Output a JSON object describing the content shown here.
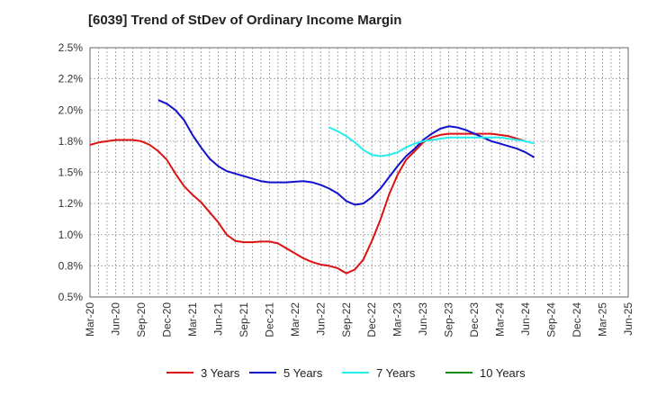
{
  "chart_data": {
    "type": "line",
    "title": "[6039]  Trend of StDev of Ordinary Income Margin",
    "xlabel": "",
    "ylabel": "",
    "ylim": [
      0.5,
      2.5
    ],
    "yticks": [
      0.5,
      0.75,
      1.0,
      1.25,
      1.5,
      1.75,
      2.0,
      2.25,
      2.5
    ],
    "ytick_labels": [
      "0.5%",
      "0.8%",
      "1.0%",
      "1.2%",
      "1.5%",
      "1.8%",
      "2.0%",
      "2.2%",
      "2.5%"
    ],
    "x_tick_labels": [
      "Mar-20",
      "Jun-20",
      "Sep-20",
      "Dec-20",
      "Mar-21",
      "Jun-21",
      "Sep-21",
      "Dec-21",
      "Mar-22",
      "Jun-22",
      "Sep-22",
      "Dec-22",
      "Mar-23",
      "Jun-23",
      "Sep-23",
      "Dec-23",
      "Mar-24",
      "Jun-24",
      "Sep-24",
      "Dec-24",
      "Mar-25",
      "Jun-25"
    ],
    "grid": true,
    "legend_position": "bottom",
    "series": [
      {
        "name": "3 Years",
        "color": "#dd1111",
        "start_index": 0,
        "values": [
          1.72,
          1.74,
          1.75,
          1.76,
          1.76,
          1.76,
          1.75,
          1.72,
          1.67,
          1.6,
          1.49,
          1.39,
          1.32,
          1.26,
          1.18,
          1.1,
          1.0,
          0.95,
          0.94,
          0.94,
          0.945,
          0.945,
          0.93,
          0.89,
          0.85,
          0.81,
          0.78,
          0.76,
          0.75,
          0.73,
          0.69,
          0.72,
          0.8,
          0.95,
          1.12,
          1.32,
          1.48,
          1.6,
          1.67,
          1.74,
          1.78,
          1.8,
          1.81,
          1.81,
          1.81,
          1.81,
          1.81,
          1.81,
          1.8,
          1.79,
          1.77,
          1.75
        ]
      },
      {
        "name": "5 Years",
        "color": "#1111cc",
        "start_index": 8,
        "values": [
          2.08,
          2.05,
          2.0,
          1.92,
          1.8,
          1.7,
          1.61,
          1.55,
          1.51,
          1.49,
          1.47,
          1.45,
          1.43,
          1.42,
          1.42,
          1.42,
          1.425,
          1.43,
          1.42,
          1.4,
          1.37,
          1.33,
          1.27,
          1.24,
          1.25,
          1.3,
          1.37,
          1.46,
          1.55,
          1.63,
          1.69,
          1.76,
          1.81,
          1.85,
          1.87,
          1.86,
          1.84,
          1.81,
          1.78,
          1.75,
          1.73,
          1.71,
          1.69,
          1.66,
          1.62
        ]
      },
      {
        "name": "7 Years",
        "color": "#22eeee",
        "start_index": 28,
        "values": [
          1.86,
          1.83,
          1.79,
          1.74,
          1.68,
          1.64,
          1.63,
          1.64,
          1.66,
          1.7,
          1.73,
          1.75,
          1.76,
          1.77,
          1.78,
          1.78,
          1.78,
          1.78,
          1.78,
          1.78,
          1.78,
          1.77,
          1.76,
          1.75,
          1.73
        ]
      },
      {
        "name": "10 Years",
        "color": "#118811",
        "start_index": null,
        "values": []
      }
    ]
  }
}
